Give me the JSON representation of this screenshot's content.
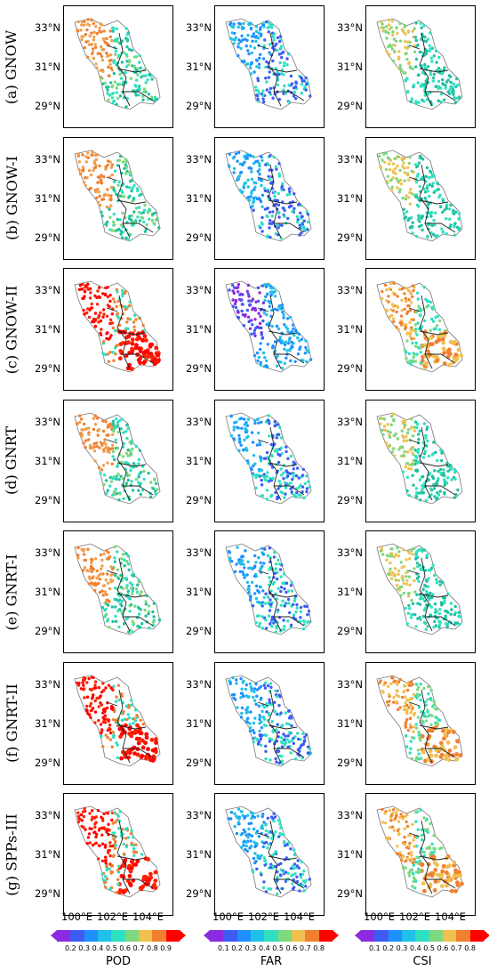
{
  "rows": [
    {
      "label": "(a) GNOW"
    },
    {
      "label": "(b) GNOW-I"
    },
    {
      "label": "(c) GNOW-II"
    },
    {
      "label": "(d) GNRT"
    },
    {
      "label": "(e) GNRT-I"
    },
    {
      "label": "(f) GNRT-II"
    },
    {
      "label": "(g) SPPs-III"
    }
  ],
  "lat_labels": [
    "33°N",
    "31°N",
    "29°N"
  ],
  "lon_labels": [
    "100°E",
    "102°E",
    "104°E"
  ],
  "colorbars": [
    {
      "title": "POD",
      "ticks": [
        "0.2",
        "0.3",
        "0.4",
        "0.5",
        "0.6",
        "0.7",
        "0.8",
        "0.9"
      ],
      "colors": [
        "#8a2be2",
        "#3d5bf5",
        "#1e90ff",
        "#20c0e8",
        "#2ee0c0",
        "#7ed87e",
        "#f0c050",
        "#f08030",
        "#ff0000"
      ]
    },
    {
      "title": "FAR",
      "ticks": [
        "0.1",
        "0.2",
        "0.3",
        "0.4",
        "0.5",
        "0.6",
        "0.7",
        "0.8"
      ],
      "colors": [
        "#8a2be2",
        "#3d5bf5",
        "#1e90ff",
        "#20c0e8",
        "#2ee0c0",
        "#7ed87e",
        "#f0c050",
        "#f08030",
        "#ff0000"
      ]
    },
    {
      "title": "CSI",
      "ticks": [
        "0.1",
        "0.2",
        "0.3",
        "0.4",
        "0.5",
        "0.6",
        "0.7",
        "0.8"
      ],
      "colors": [
        "#8a2be2",
        "#3d5bf5",
        "#1e90ff",
        "#20c0e8",
        "#2ee0c0",
        "#7ed87e",
        "#f0c050",
        "#f08030",
        "#ff0000"
      ]
    }
  ],
  "panel_palettes": {
    "pod_base": [
      "#f08030",
      "#f0a050",
      "#7ed87e",
      "#2ee0c0",
      "#20c0a0"
    ],
    "pod_hot": [
      "#ff0000",
      "#ff2000",
      "#f08030",
      "#2ee0c0"
    ],
    "far": [
      "#1e90ff",
      "#20c0e8",
      "#3d5bf5",
      "#2ee0c0"
    ],
    "far_low": [
      "#3d5bf5",
      "#8a2be2",
      "#1e90ff",
      "#20c0e8"
    ],
    "csi": [
      "#f0c050",
      "#7ed87e",
      "#2ee0c0",
      "#20c0a0"
    ],
    "csi_hot": [
      "#f08030",
      "#f0c050",
      "#2ee0c0",
      "#7ed87e"
    ]
  },
  "panel_variants": [
    [
      "pod_base",
      "far",
      "csi"
    ],
    [
      "pod_base",
      "far",
      "csi"
    ],
    [
      "pod_hot",
      "far_low",
      "csi_hot"
    ],
    [
      "pod_base",
      "far",
      "csi"
    ],
    [
      "pod_base",
      "far",
      "csi"
    ],
    [
      "pod_hot",
      "far",
      "csi_hot"
    ],
    [
      "pod_hot",
      "far",
      "csi_hot"
    ]
  ]
}
